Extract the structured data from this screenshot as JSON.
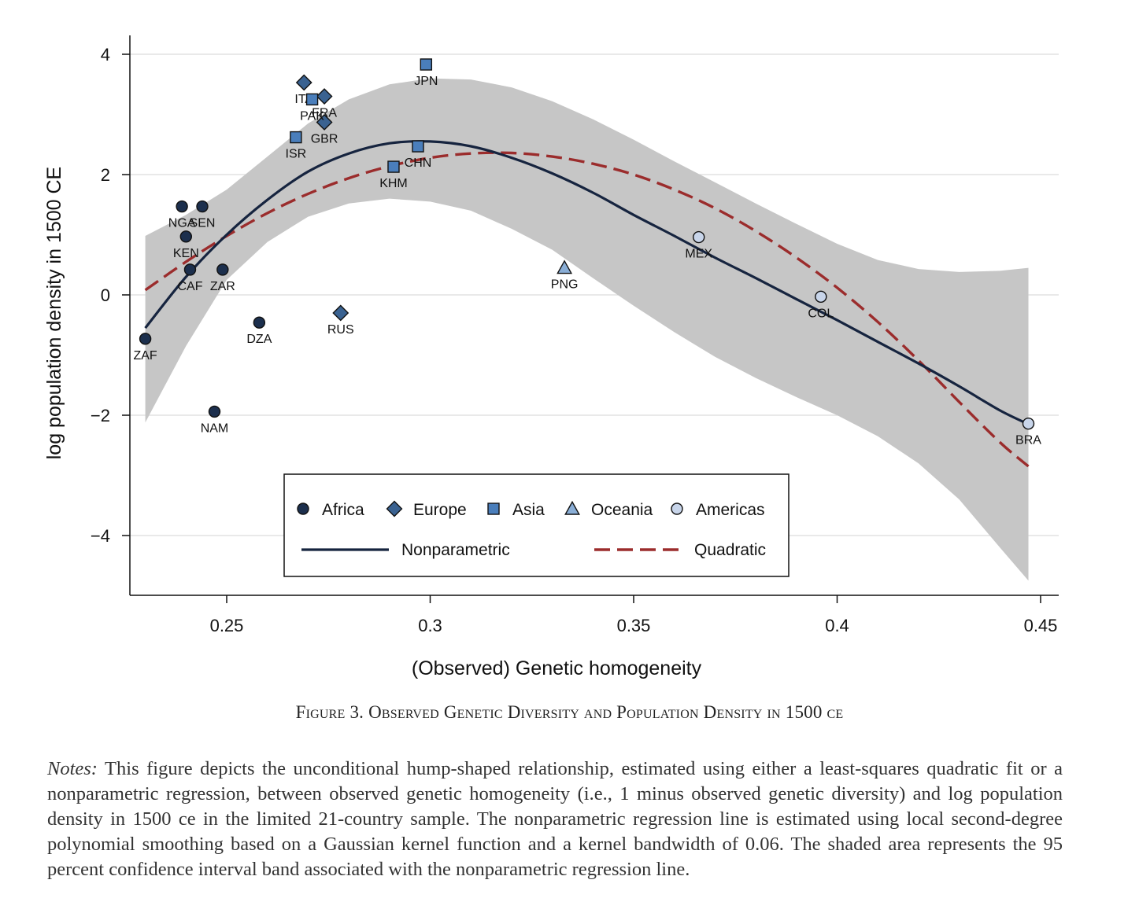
{
  "chart_data": {
    "type": "scatter",
    "xlabel": "(Observed) Genetic homogeneity",
    "ylabel": "log population density in 1500 CE",
    "xlim": [
      0.226,
      0.454
    ],
    "ylim": [
      -5.0,
      4.3
    ],
    "x_ticks": [
      0.25,
      0.3,
      0.35,
      0.4,
      0.45
    ],
    "x_tick_labels": [
      "0.25",
      "0.3",
      "0.35",
      "0.4",
      "0.45"
    ],
    "y_ticks": [
      4,
      2,
      0,
      -2,
      -4
    ],
    "y_tick_labels": [
      "4",
      "2",
      "0",
      "−2",
      "−4"
    ],
    "grid": "horizontal",
    "legend_position": "lower-center",
    "groups": [
      {
        "name": "Africa",
        "marker": "circle",
        "fill": "#1c2f4d"
      },
      {
        "name": "Europe",
        "marker": "diamond",
        "fill": "#3a6291"
      },
      {
        "name": "Asia",
        "marker": "square",
        "fill": "#4a7ebb"
      },
      {
        "name": "Oceania",
        "marker": "triangle",
        "fill": "#8aaed6"
      },
      {
        "name": "Americas",
        "marker": "circle",
        "fill": "#c8d5ea"
      }
    ],
    "points": [
      {
        "label": "ZAF",
        "group": "Africa",
        "x": 0.23,
        "y": -0.73,
        "lx": 0,
        "ly": 34
      },
      {
        "label": "NGA",
        "group": "Africa",
        "x": 0.239,
        "y": 1.47,
        "lx": 0,
        "ly": 34
      },
      {
        "label": "SEN",
        "group": "Africa",
        "x": 0.244,
        "y": 1.47,
        "lx": 0,
        "ly": 34
      },
      {
        "label": "KEN",
        "group": "Africa",
        "x": 0.24,
        "y": 0.97,
        "lx": 0,
        "ly": 34
      },
      {
        "label": "CAF",
        "group": "Africa",
        "x": 0.241,
        "y": 0.42,
        "lx": 0,
        "ly": 34
      },
      {
        "label": "ZAR",
        "group": "Africa",
        "x": 0.249,
        "y": 0.42,
        "lx": 0,
        "ly": 34
      },
      {
        "label": "DZA",
        "group": "Africa",
        "x": 0.258,
        "y": -0.46,
        "lx": 0,
        "ly": 34
      },
      {
        "label": "NAM",
        "group": "Africa",
        "x": 0.247,
        "y": -1.94,
        "lx": 0,
        "ly": 34
      },
      {
        "label": "ITA",
        "group": "Europe",
        "x": 0.269,
        "y": 3.53,
        "lx": 0,
        "ly": 34
      },
      {
        "label": "FRA",
        "group": "Europe",
        "x": 0.274,
        "y": 3.3,
        "lx": 0,
        "ly": 34
      },
      {
        "label": "GBR",
        "group": "Europe",
        "x": 0.274,
        "y": 2.87,
        "lx": 0,
        "ly": 34
      },
      {
        "label": "RUS",
        "group": "Europe",
        "x": 0.278,
        "y": -0.3,
        "lx": 0,
        "ly": 34
      },
      {
        "label": "PAK",
        "group": "Asia",
        "x": 0.271,
        "y": 3.25,
        "lx": 0,
        "ly": 34
      },
      {
        "label": "ISR",
        "group": "Asia",
        "x": 0.267,
        "y": 2.62,
        "lx": 0,
        "ly": 34
      },
      {
        "label": "JPN",
        "group": "Asia",
        "x": 0.299,
        "y": 3.83,
        "lx": 0,
        "ly": 34
      },
      {
        "label": "CHN",
        "group": "Asia",
        "x": 0.297,
        "y": 2.47,
        "lx": 0,
        "ly": 34
      },
      {
        "label": "KHM",
        "group": "Asia",
        "x": 0.291,
        "y": 2.13,
        "lx": 0,
        "ly": 34
      },
      {
        "label": "PNG",
        "group": "Oceania",
        "x": 0.333,
        "y": 0.45,
        "lx": 0,
        "ly": 34
      },
      {
        "label": "MEX",
        "group": "Americas",
        "x": 0.366,
        "y": 0.96,
        "lx": 0,
        "ly": 34
      },
      {
        "label": "COL",
        "group": "Americas",
        "x": 0.396,
        "y": -0.03,
        "lx": 0,
        "ly": 34
      },
      {
        "label": "BRA",
        "group": "Americas",
        "x": 0.447,
        "y": -2.14,
        "lx": 0,
        "ly": 34
      }
    ],
    "series": [
      {
        "name": "Nonparametric",
        "style": "solid",
        "color": "#16243f",
        "x": [
          0.23,
          0.24,
          0.25,
          0.26,
          0.27,
          0.28,
          0.29,
          0.3,
          0.31,
          0.32,
          0.33,
          0.34,
          0.35,
          0.36,
          0.37,
          0.38,
          0.39,
          0.4,
          0.41,
          0.42,
          0.43,
          0.44,
          0.447
        ],
        "y": [
          -0.55,
          0.3,
          1.0,
          1.58,
          2.05,
          2.35,
          2.52,
          2.55,
          2.47,
          2.28,
          2.02,
          1.7,
          1.33,
          0.98,
          0.62,
          0.28,
          -0.07,
          -0.42,
          -0.78,
          -1.14,
          -1.52,
          -1.92,
          -2.15
        ]
      },
      {
        "name": "Quadratic",
        "style": "dashed",
        "color": "#9b2c2c",
        "x": [
          0.23,
          0.24,
          0.25,
          0.26,
          0.27,
          0.28,
          0.29,
          0.3,
          0.31,
          0.32,
          0.33,
          0.34,
          0.35,
          0.36,
          0.37,
          0.38,
          0.39,
          0.4,
          0.41,
          0.42,
          0.43,
          0.44,
          0.447
        ],
        "y": [
          0.08,
          0.55,
          0.98,
          1.36,
          1.68,
          1.94,
          2.14,
          2.28,
          2.35,
          2.36,
          2.3,
          2.18,
          2.0,
          1.75,
          1.44,
          1.06,
          0.62,
          0.12,
          -0.45,
          -1.09,
          -1.78,
          -2.45,
          -2.85
        ]
      }
    ],
    "confidence_band": {
      "color": "#c6c6c6",
      "x": [
        0.23,
        0.24,
        0.25,
        0.26,
        0.27,
        0.28,
        0.29,
        0.3,
        0.31,
        0.32,
        0.33,
        0.34,
        0.35,
        0.36,
        0.37,
        0.38,
        0.39,
        0.4,
        0.41,
        0.42,
        0.43,
        0.44,
        0.447
      ],
      "upper": [
        0.98,
        1.33,
        1.75,
        2.3,
        2.85,
        3.25,
        3.5,
        3.6,
        3.58,
        3.45,
        3.22,
        2.92,
        2.58,
        2.22,
        1.87,
        1.52,
        1.18,
        0.85,
        0.58,
        0.43,
        0.38,
        0.4,
        0.45
      ],
      "lower": [
        -2.12,
        -0.85,
        0.25,
        0.88,
        1.3,
        1.52,
        1.6,
        1.55,
        1.4,
        1.1,
        0.75,
        0.28,
        -0.18,
        -0.62,
        -1.03,
        -1.38,
        -1.7,
        -2.0,
        -2.35,
        -2.8,
        -3.4,
        -4.2,
        -4.75
      ]
    },
    "legend": {
      "marker_entries": [
        "Africa",
        "Europe",
        "Asia",
        "Oceania",
        "Americas"
      ],
      "line_entries": [
        "Nonparametric",
        "Quadratic"
      ]
    }
  },
  "caption": "Figure 3. Observed Genetic Diversity and Population Density in 1500 ce",
  "notes": {
    "head": "Notes:",
    "body": "This figure depicts the unconditional hump-shaped relationship, estimated using either a least-squares quadratic fit or a nonparametric regression, between observed genetic homogeneity (i.e., 1 minus observed genetic diversity) and log population density in 1500 ce in the limited 21-country sample. The nonparametric regression line is estimated using local second-degree polynomial smoothing based on a Gaussian kernel function and a kernel bandwidth of 0.06. The shaded area represents the 95 percent confidence interval band associated with the nonparametric regression line."
  }
}
